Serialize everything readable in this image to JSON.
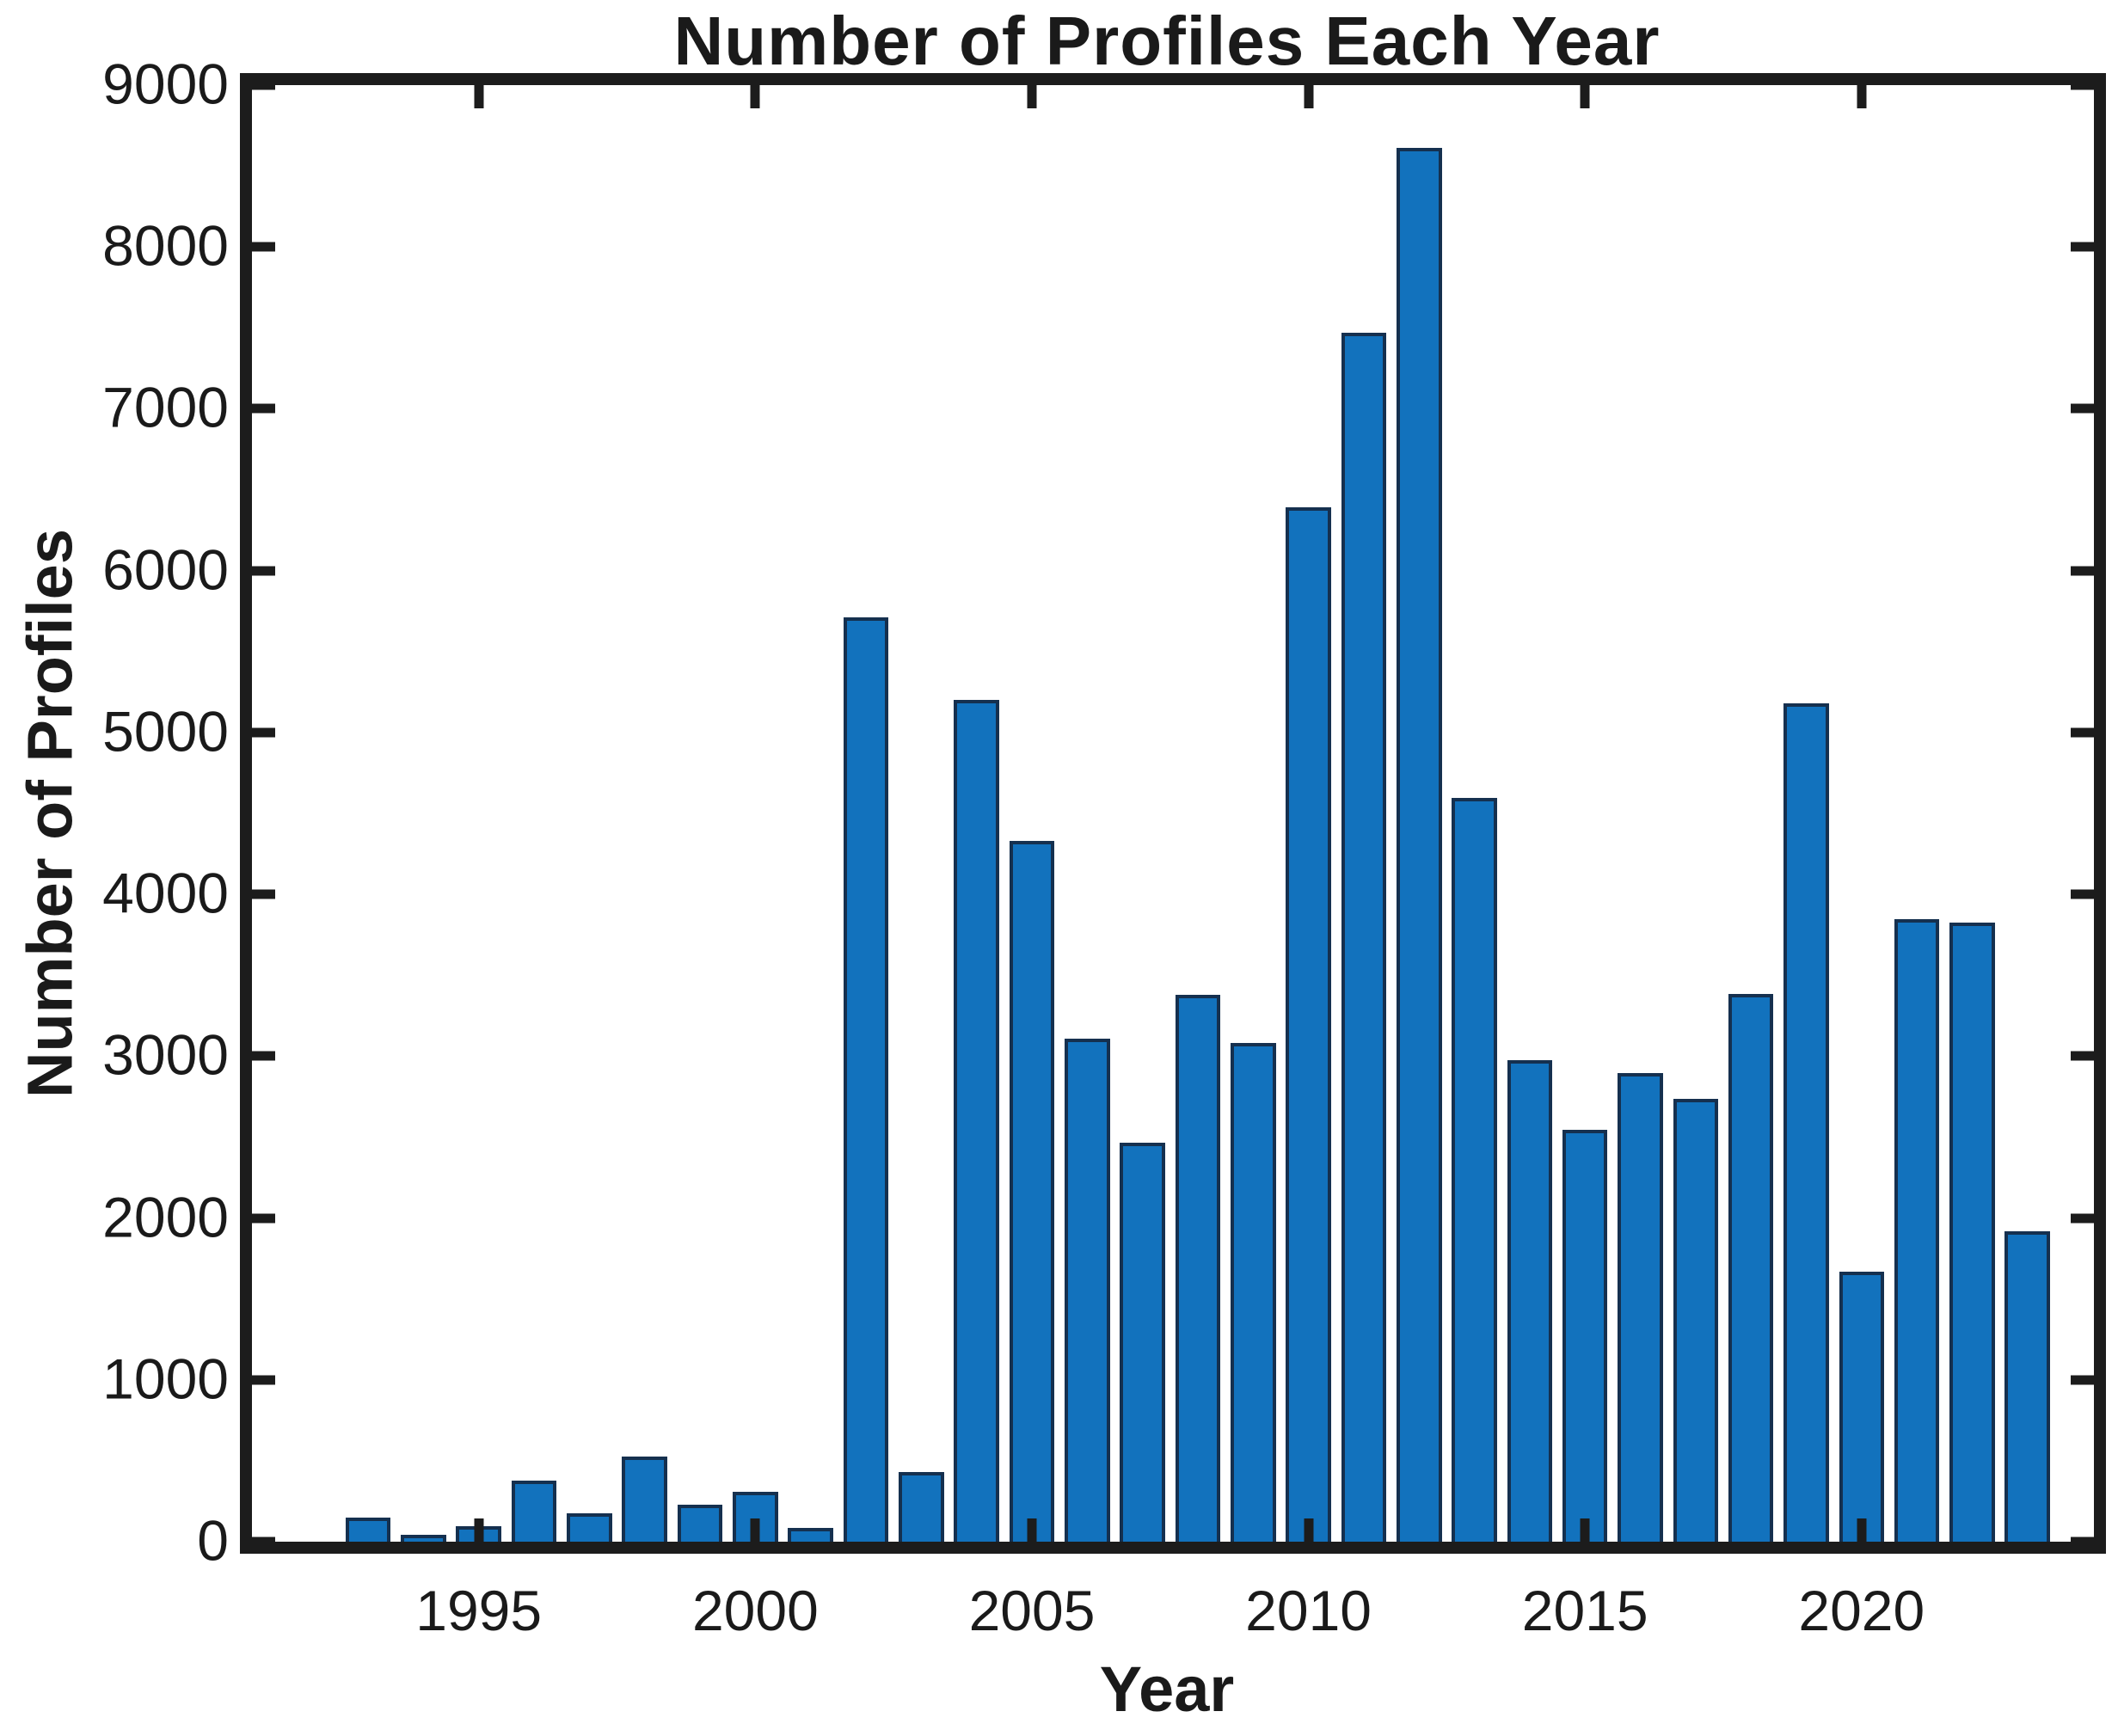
{
  "figure": {
    "title": "Number of Profiles Each Year",
    "xlabel": "Year",
    "ylabel": "Number of Profiles"
  },
  "chart_data": {
    "type": "bar",
    "title": "Number of Profiles Each Year",
    "xlabel": "Year",
    "ylabel": "Number of Profiles",
    "categories": [
      1993,
      1994,
      1995,
      1996,
      1997,
      1998,
      1999,
      2000,
      2001,
      2002,
      2003,
      2004,
      2005,
      2006,
      2007,
      2008,
      2009,
      2010,
      2011,
      2012,
      2013,
      2014,
      2015,
      2016,
      2017,
      2018,
      2019,
      2020,
      2021,
      2022,
      2023
    ],
    "values": [
      150,
      45,
      95,
      380,
      175,
      525,
      230,
      310,
      85,
      5710,
      430,
      5200,
      4330,
      3110,
      2465,
      3380,
      3080,
      6390,
      7470,
      8610,
      4595,
      2975,
      2545,
      2895,
      2735,
      3385,
      5180,
      1670,
      3845,
      3825,
      1920
    ],
    "x_ticks": [
      1995,
      2000,
      2005,
      2010,
      2015,
      2020
    ],
    "y_ticks": [
      0,
      1000,
      2000,
      3000,
      4000,
      5000,
      6000,
      7000,
      8000,
      9000
    ],
    "xlim": [
      1990.9,
      2024.2
    ],
    "ylim": [
      0,
      9000
    ],
    "bar_width_year_units": 0.82,
    "grid": false,
    "legend": null,
    "colors": {
      "bar_fill": "#1272bd",
      "bar_edge": "#15304f",
      "axis": "#1c1c1c",
      "text": "#1a1a1a",
      "background": "#ffffff"
    }
  }
}
